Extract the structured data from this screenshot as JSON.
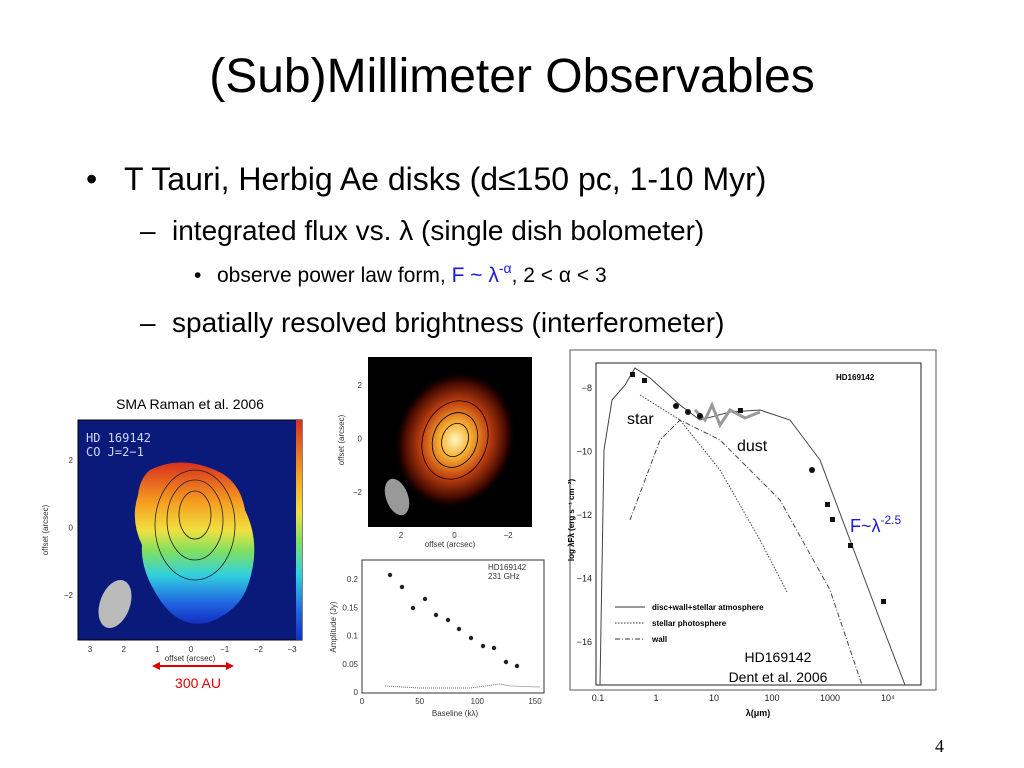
{
  "title": "(Sub)Millimeter Observables",
  "bullet_1": "T Tauri, Herbig Ae disks (d≤150 pc, 1-10 Myr)",
  "sub_bullet_1": "integrated flux vs. λ (single dish bolometer)",
  "sub_sub_bullet": {
    "lead": "observe power law form, ",
    "formula": "F ~ λ",
    "exponent": "-α",
    "tail": ", 2 < α < 3"
  },
  "sub_bullet_2": "spatially resolved brightness (interferometer)",
  "figures": {
    "sma_map": {
      "caption": "SMA Raman et al. 2006",
      "labels": [
        "HD 169142",
        "CO J=2−1"
      ],
      "yticks": [
        "2",
        "0",
        "−2"
      ],
      "xticks": [
        "3",
        "2",
        "1",
        "0",
        "−1",
        "−2",
        "−3"
      ],
      "xlabel": "offset (arcsec)",
      "ylabel": "offset (arcsec)",
      "scale": "300 AU"
    },
    "continuum_map": {
      "yticks": [
        "2",
        "0",
        "−2"
      ],
      "xticks": [
        "2",
        "0",
        "−2"
      ],
      "xlabel": "offset (arcsec)",
      "ylabel": "offset (arcsec)"
    },
    "visibility_plot": {
      "labels": [
        "HD169142",
        "231 GHz"
      ],
      "yticks": [
        "0.2",
        "0.15",
        "0.1",
        "0.05",
        "0"
      ],
      "xticks": [
        "0",
        "50",
        "100",
        "150"
      ],
      "xlabel": "Baseline (kλ)",
      "ylabel": "Amplitude (Jy)"
    },
    "sed_plot": {
      "label": "HD169142",
      "yticks": [
        "−8",
        "−10",
        "−12",
        "−14",
        "−16"
      ],
      "xticks": [
        "0.1",
        "1",
        "10",
        "100",
        "1000",
        "10⁴"
      ],
      "xlabel": "λ(μm)",
      "ylabel": "log λFλ (erg s⁻¹ cm⁻²)",
      "legend": [
        "disc+wall+stellar atmosphere",
        "stellar photosphere",
        "wall"
      ],
      "star_label": "star",
      "dust_label": "dust",
      "slope": {
        "formula": "F~λ",
        "exponent": "-2.5"
      },
      "caption": [
        "HD169142",
        "Dent et al. 2006"
      ]
    }
  },
  "page_number": "4"
}
